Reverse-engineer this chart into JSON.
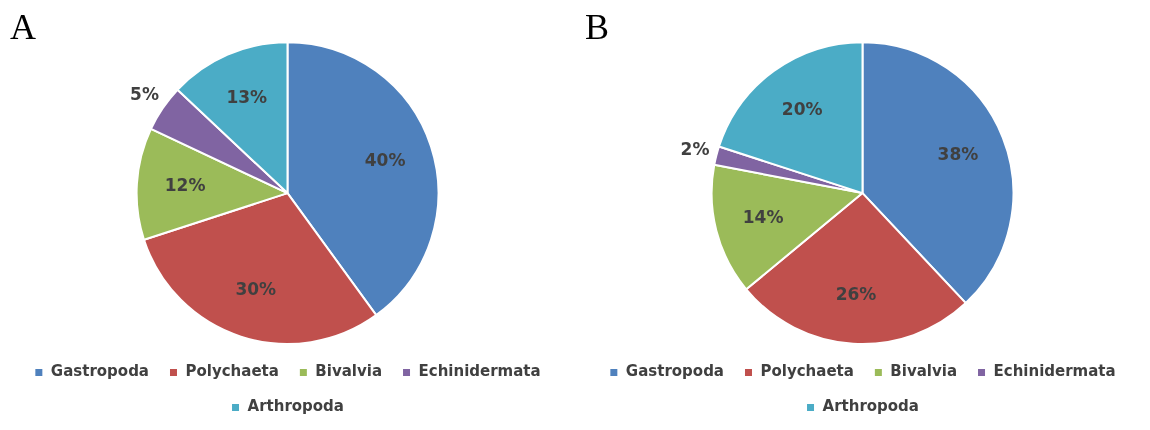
{
  "chart_data": [
    {
      "type": "pie",
      "title": "A",
      "categories": [
        "Gastropoda",
        "Polychaeta",
        "Bivalvia",
        "Echinidermata",
        "Arthropoda"
      ],
      "values": [
        40,
        30,
        12,
        5,
        13
      ],
      "value_labels": [
        "40%",
        "30%",
        "12%",
        "5%",
        "13%"
      ],
      "colors": [
        "#4f81bd",
        "#c0504d",
        "#9bbb59",
        "#8064a2",
        "#4bacc6"
      ],
      "legend": "bottom"
    },
    {
      "type": "pie",
      "title": "B",
      "categories": [
        "Gastropoda",
        "Polychaeta",
        "Bivalvia",
        "Echinidermata",
        "Arthropoda"
      ],
      "values": [
        38,
        26,
        14,
        2,
        20
      ],
      "value_labels": [
        "38%",
        "26%",
        "14%",
        "2%",
        "20%"
      ],
      "colors": [
        "#4f81bd",
        "#c0504d",
        "#9bbb59",
        "#8064a2",
        "#4bacc6"
      ],
      "legend": "bottom"
    }
  ]
}
